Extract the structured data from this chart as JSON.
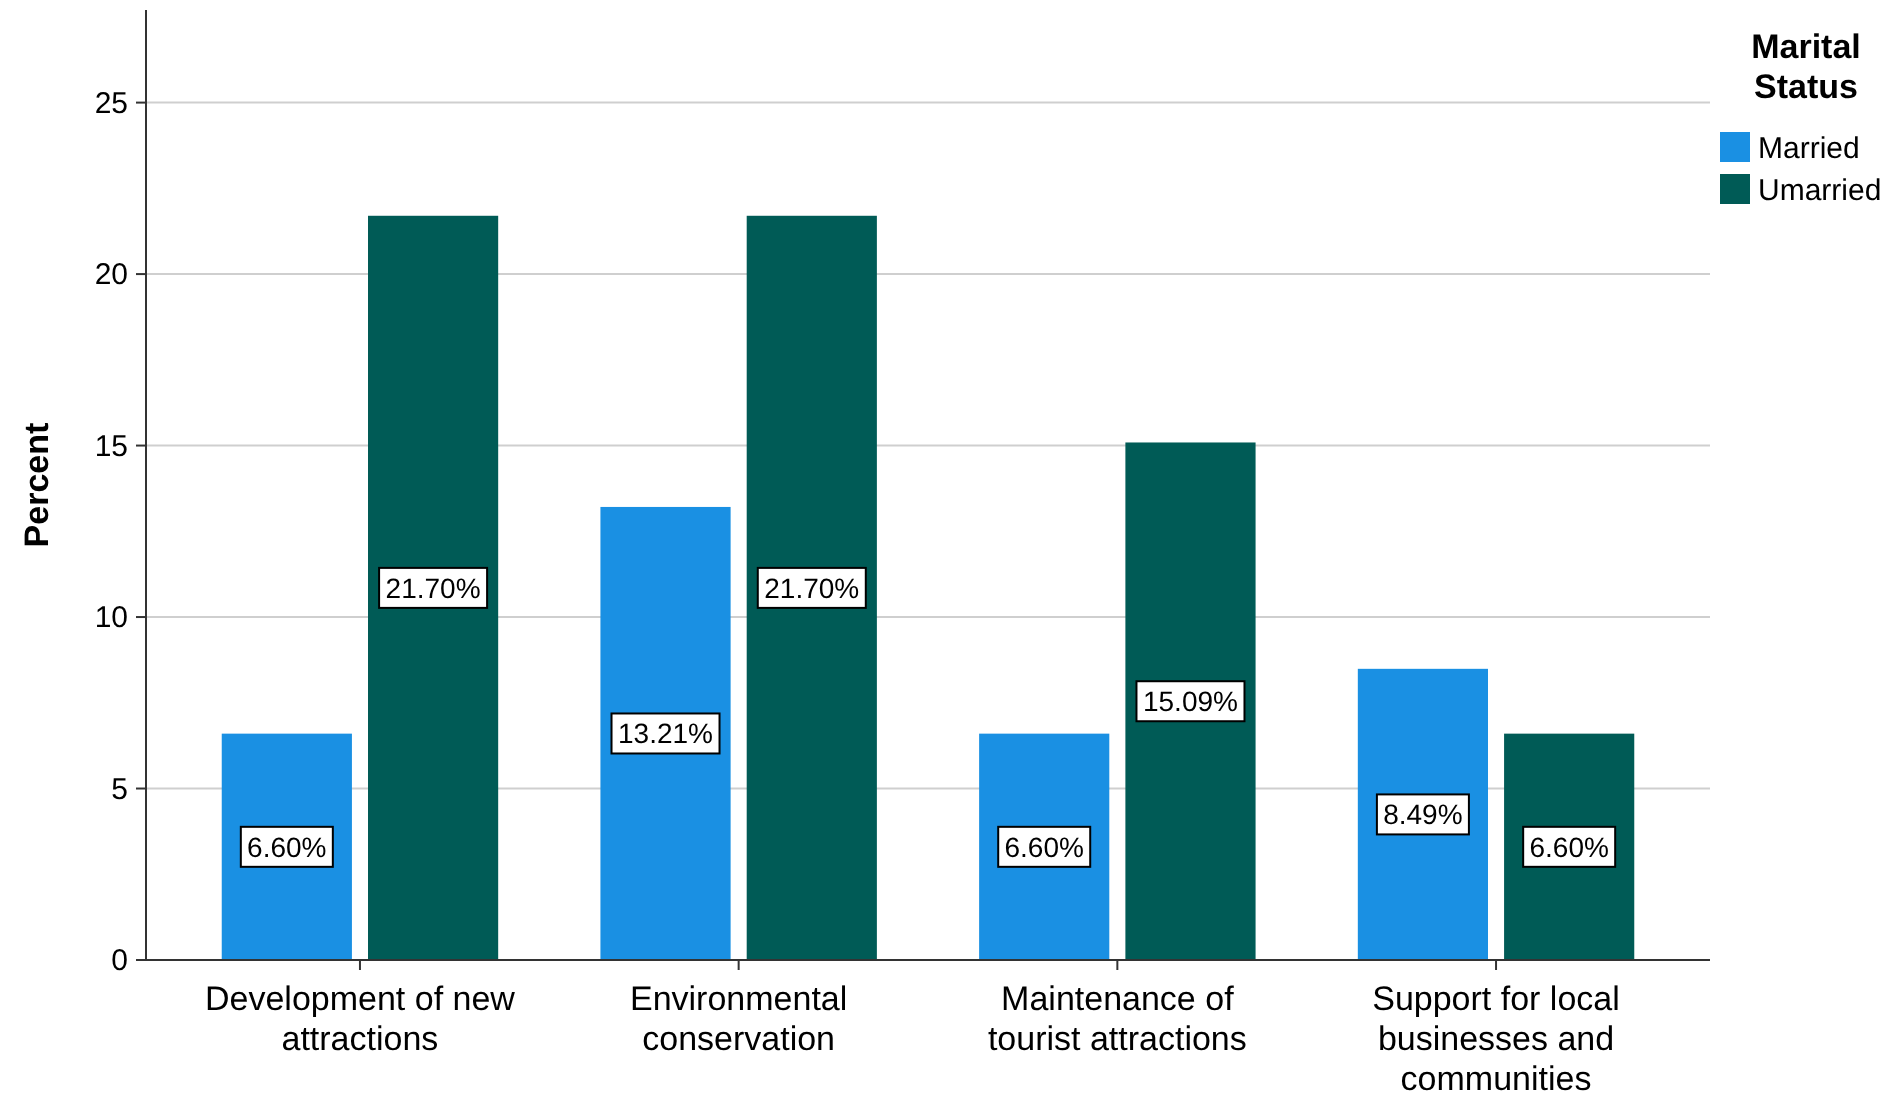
{
  "chart_data": {
    "type": "bar",
    "ylabel": "Percent",
    "legend_title": "Marital Status",
    "legend": "top right",
    "grid": "y",
    "categories": [
      "Development of new attractions",
      "Environmental conservation",
      "Maintenance of tourist attractions",
      "Support for local businesses and communities"
    ],
    "ylim": [
      0,
      27.7
    ],
    "yticks": [
      0,
      5,
      10,
      15,
      20,
      25
    ],
    "series": [
      {
        "name": "Married",
        "color": "#1a90e3",
        "values": [
          6.6,
          13.21,
          6.6,
          8.49
        ],
        "value_labels": [
          "6.60%",
          "13.21%",
          "6.60%",
          "8.49%"
        ]
      },
      {
        "name": "Umarried",
        "color": "#005b56",
        "values": [
          21.7,
          21.7,
          15.09,
          6.6
        ],
        "value_labels": [
          "21.70%",
          "21.70%",
          "15.09%",
          "6.60%"
        ]
      }
    ]
  }
}
